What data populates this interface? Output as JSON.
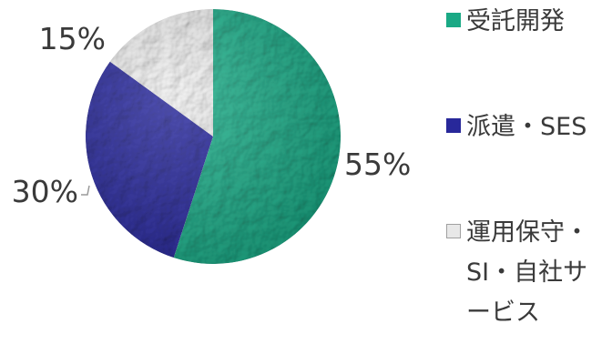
{
  "chart_data": {
    "type": "pie",
    "categories": [
      "受託開発",
      "派遣・SES",
      "運用保守・SI・自社サービス"
    ],
    "values": [
      55,
      30,
      15
    ],
    "value_labels": [
      "55%",
      "30%",
      "15%"
    ],
    "colors": [
      "#1aa985",
      "#28289a",
      "#e8e8e8"
    ],
    "legend_position": "right"
  },
  "legend": {
    "items": [
      {
        "label": "受託開発",
        "color": "#1aa985"
      },
      {
        "label": "派遣・SES",
        "color": "#28289a"
      },
      {
        "label": "運用保守・SI・自社サービス",
        "color": "#e8e8e8"
      }
    ]
  }
}
